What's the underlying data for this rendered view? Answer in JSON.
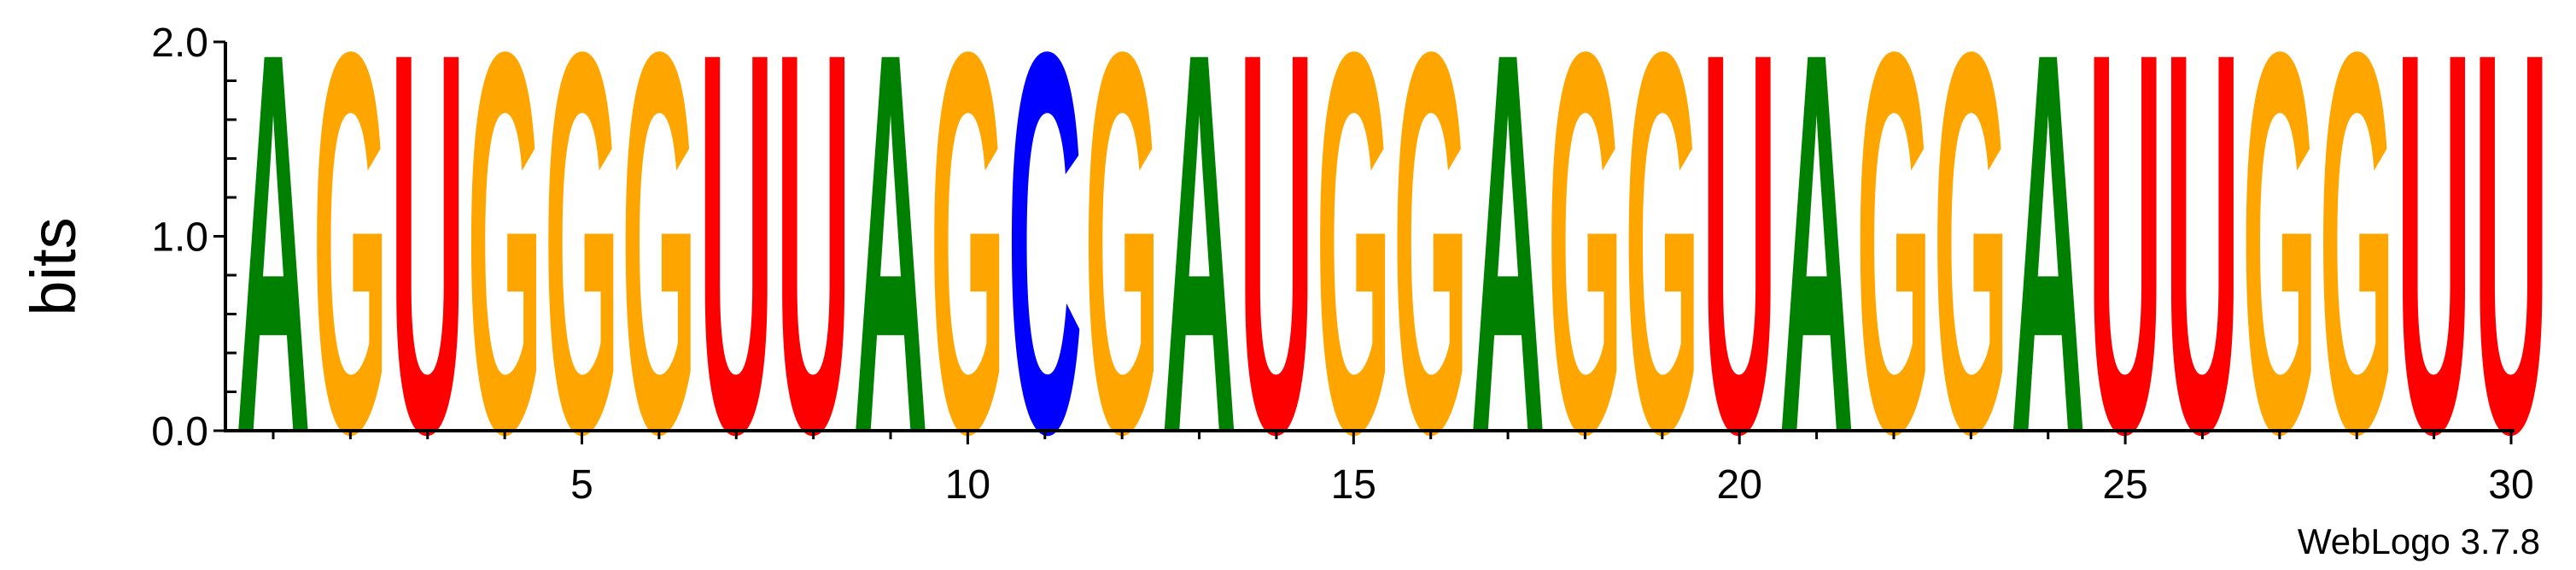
{
  "chart_data": {
    "type": "sequence-logo",
    "ylabel": "bits",
    "ylim": [
      0,
      2.0
    ],
    "y_ticks": [
      "0.0",
      "1.0",
      "2.0"
    ],
    "x_ticks": [
      "5",
      "10",
      "15",
      "20",
      "25",
      "30"
    ],
    "x_tick_values": [
      5,
      10,
      15,
      20,
      25,
      30
    ],
    "positions": [
      1,
      2,
      3,
      4,
      5,
      6,
      7,
      8,
      9,
      10,
      11,
      12,
      13,
      14,
      15,
      16,
      17,
      18,
      19,
      20,
      21,
      22,
      23,
      24,
      25,
      26,
      27,
      28,
      29,
      30
    ],
    "letters": [
      "A",
      "G",
      "U",
      "G",
      "G",
      "G",
      "U",
      "U",
      "A",
      "G",
      "C",
      "G",
      "A",
      "U",
      "G",
      "G",
      "A",
      "G",
      "G",
      "U",
      "A",
      "G",
      "G",
      "A",
      "U",
      "U",
      "G",
      "G",
      "U",
      "U"
    ],
    "bits": [
      2.0,
      2.0,
      2.0,
      2.0,
      2.0,
      2.0,
      2.0,
      2.0,
      2.0,
      2.0,
      2.0,
      2.0,
      2.0,
      2.0,
      2.0,
      2.0,
      2.0,
      2.0,
      2.0,
      2.0,
      2.0,
      2.0,
      2.0,
      2.0,
      2.0,
      2.0,
      2.0,
      2.0,
      2.0,
      2.0
    ],
    "letter_colors": {
      "A": "#008000",
      "C": "#0000ff",
      "G": "#ffa500",
      "U": "#ff0000"
    }
  },
  "credit": "WebLogo 3.7.8"
}
